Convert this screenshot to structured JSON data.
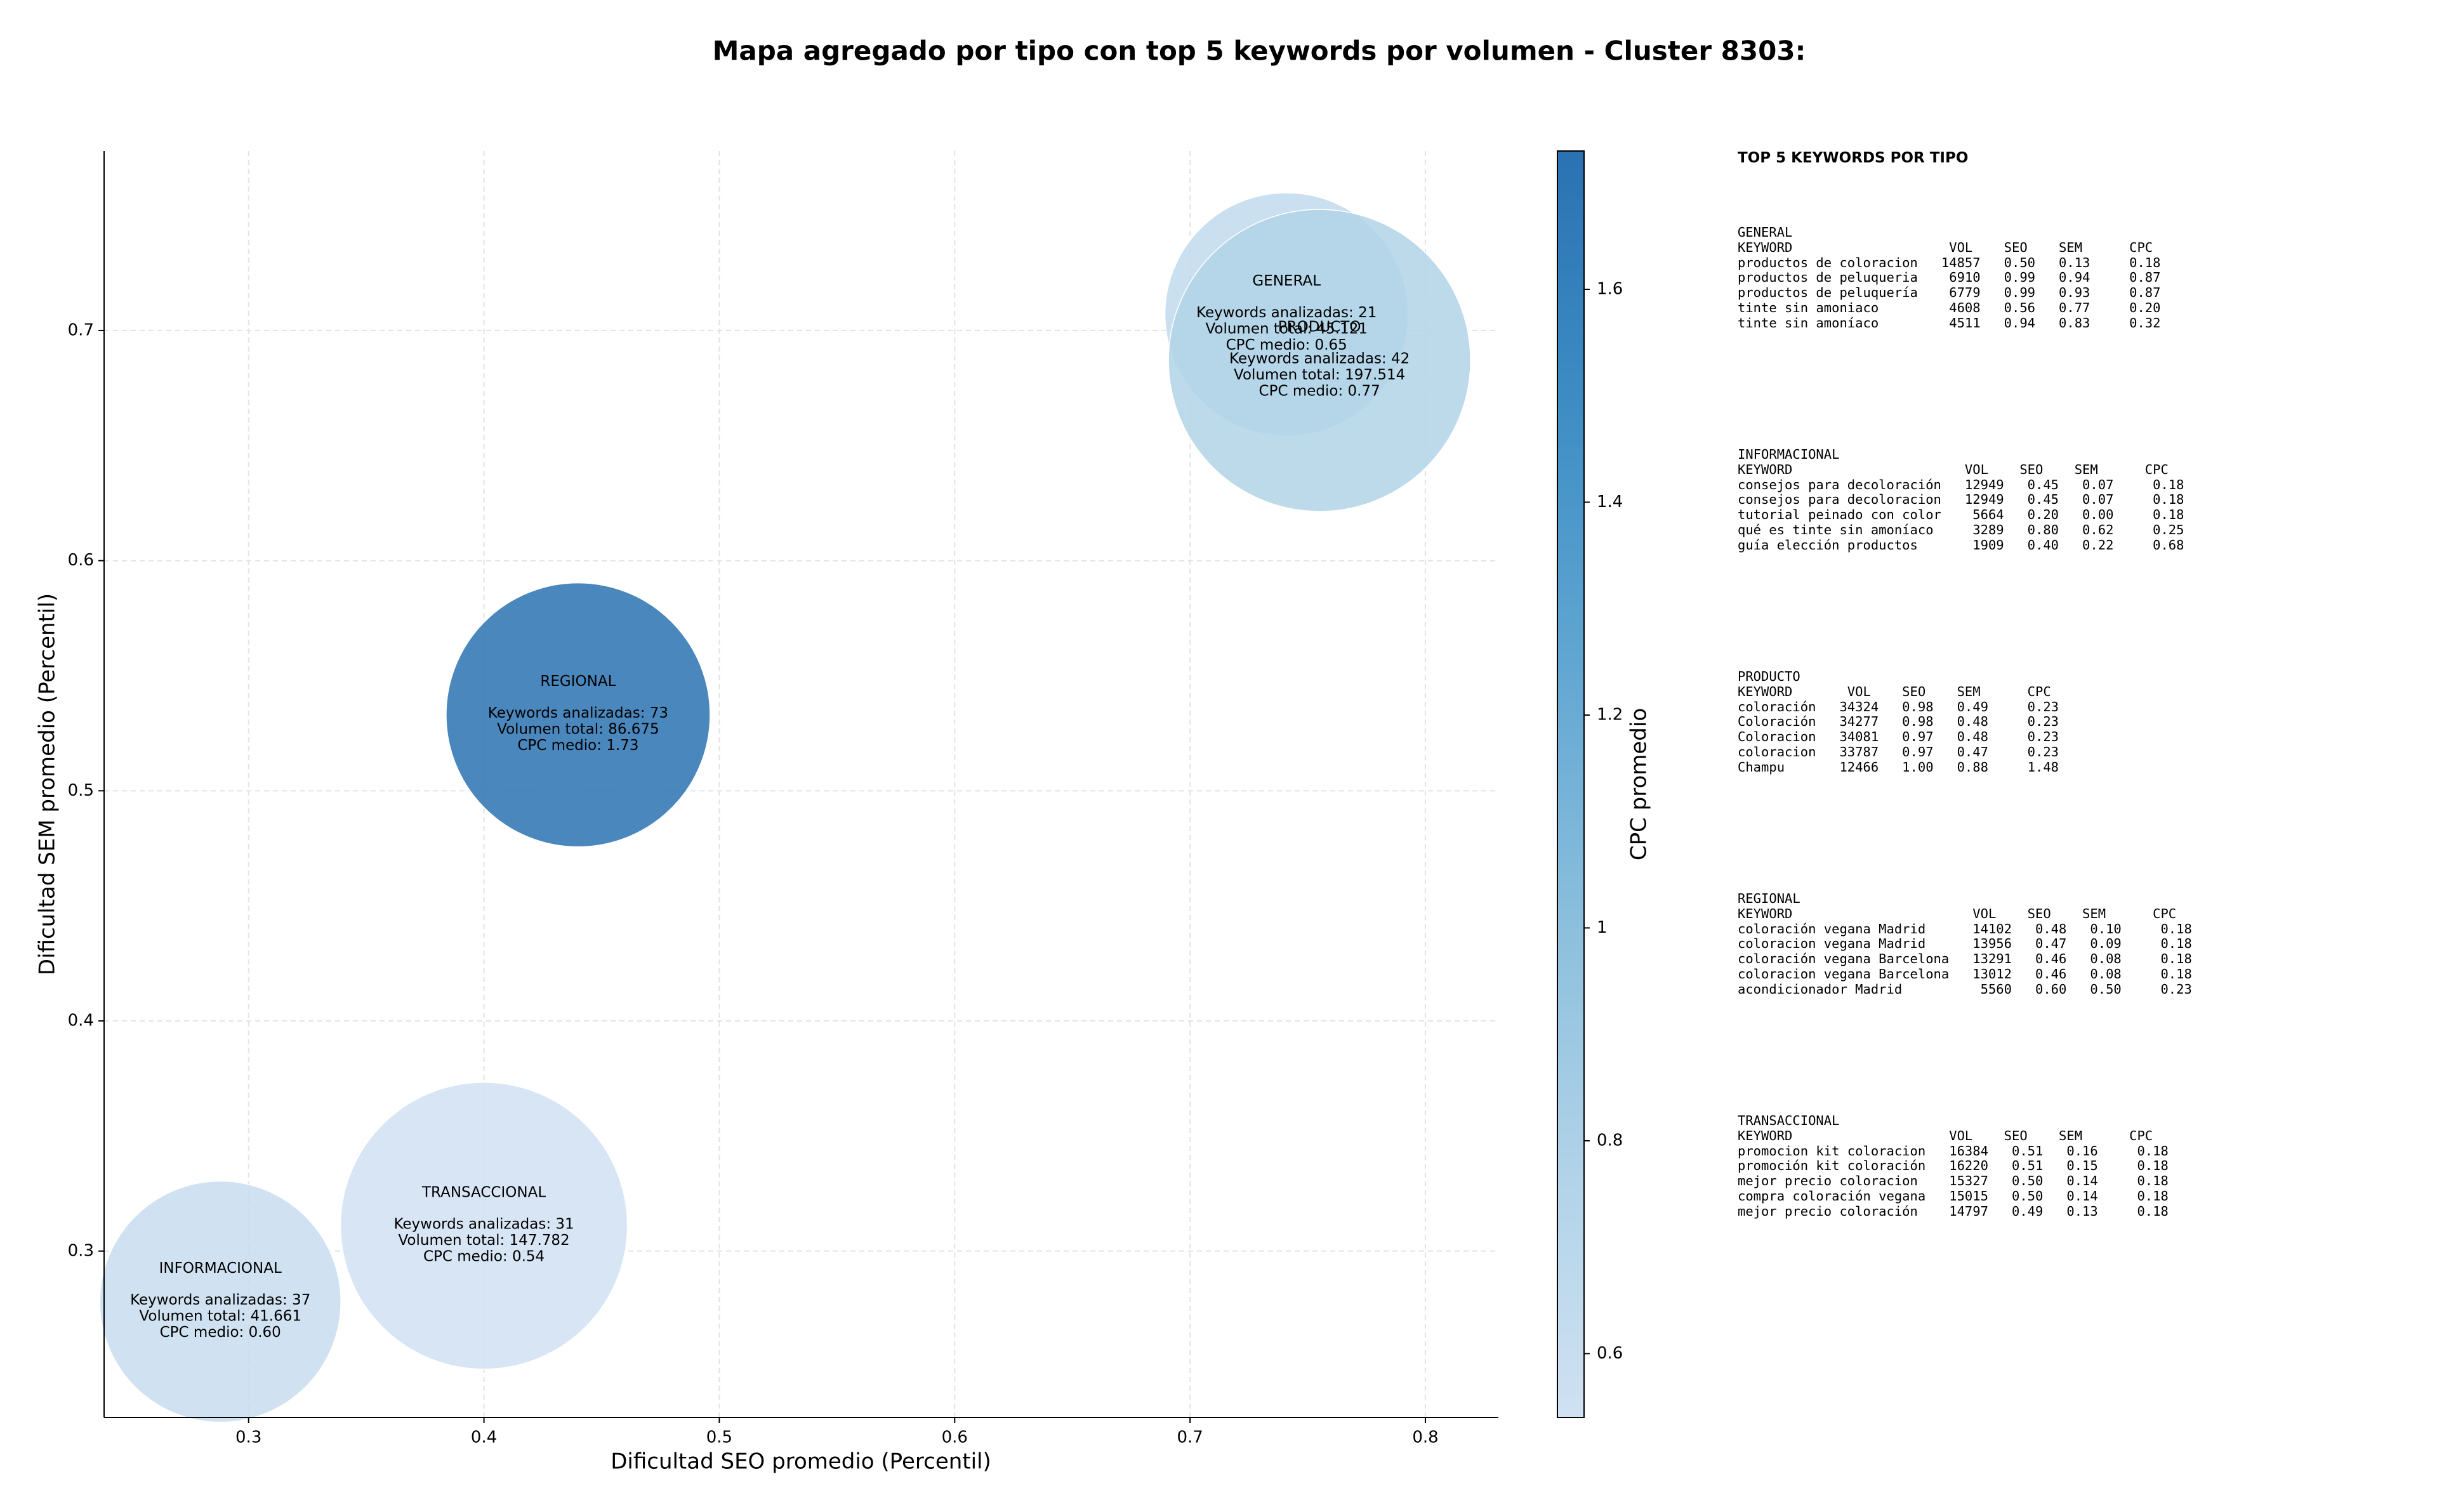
{
  "chart_data": {
    "type": "scatter",
    "title": "Mapa agregado por tipo con top 5 keywords por volumen - Cluster 8303:",
    "xlabel": "Dificultad SEO promedio (Percentil)",
    "ylabel": "Dificultad SEM promedio (Percentil)",
    "xlim": [
      0.2386,
      0.831
    ],
    "ylim": [
      0.2277,
      0.778
    ],
    "xticks": [
      0.3,
      0.4,
      0.5,
      0.6,
      0.7,
      0.8
    ],
    "yticks": [
      0.3,
      0.4,
      0.5,
      0.6,
      0.7
    ],
    "grid": true,
    "colorbar_label": "CPC promedio",
    "clim": [
      0.54,
      1.73
    ],
    "cticks": [
      0.6,
      0.8,
      1.0,
      1.2,
      1.4,
      1.6
    ],
    "colormap": [
      "#d0e1f2",
      "#b0d2e8",
      "#89bedc",
      "#60a6d2",
      "#3d8dc4",
      "#2a72b2"
    ],
    "bubbles": [
      {
        "label": "GENERAL",
        "x": 0.741,
        "y": 0.707,
        "volume": 45121,
        "cpc": 0.65,
        "lines": [
          "Keywords analizadas: 21",
          "Volumen total: 45.121",
          "CPC medio: 0.65"
        ]
      },
      {
        "label": "INFORMACIONAL",
        "x": 0.288,
        "y": 0.278,
        "volume": 41661,
        "cpc": 0.6,
        "lines": [
          "Keywords analizadas: 37",
          "Volumen total: 41.661",
          "CPC medio: 0.60"
        ]
      },
      {
        "label": "PRODUCTO",
        "x": 0.755,
        "y": 0.687,
        "volume": 197514,
        "cpc": 0.77,
        "lines": [
          "Keywords analizadas: 42",
          "Volumen total: 197.514",
          "CPC medio: 0.77"
        ]
      },
      {
        "label": "REGIONAL",
        "x": 0.44,
        "y": 0.533,
        "volume": 86675,
        "cpc": 1.73,
        "lines": [
          "Keywords analizadas: 73",
          "Volumen total: 86.675",
          "CPC medio: 1.73"
        ]
      },
      {
        "label": "TRANSACCIONAL",
        "x": 0.4,
        "y": 0.311,
        "volume": 147782,
        "cpc": 0.54,
        "lines": [
          "Keywords analizadas: 31",
          "Volumen total: 147.782",
          "CPC medio: 0.54"
        ]
      }
    ]
  },
  "keyword_panel": {
    "title": "TOP 5 KEYWORDS POR TIPO",
    "sections": [
      {
        "title": "GENERAL",
        "lines": [
          "KEYWORD                    VOL    SEO    SEM      CPC",
          "productos de coloracion   14857   0.50   0.13     0.18",
          "productos de peluqueria    6910   0.99   0.94     0.87",
          "productos de peluquería    6779   0.99   0.93     0.87",
          "tinte sin amoniaco         4608   0.56   0.77     0.20",
          "tinte sin amoníaco         4511   0.94   0.83     0.32"
        ]
      },
      {
        "title": "INFORMACIONAL",
        "lines": [
          "KEYWORD                      VOL    SEO    SEM      CPC",
          "consejos para decoloración   12949   0.45   0.07     0.18",
          "consejos para decoloracion   12949   0.45   0.07     0.18",
          "tutorial peinado con color    5664   0.20   0.00     0.18",
          "qué es tinte sin amoníaco     3289   0.80   0.62     0.25",
          "guía elección productos       1909   0.40   0.22     0.68"
        ]
      },
      {
        "title": "PRODUCTO",
        "lines": [
          "KEYWORD       VOL    SEO    SEM      CPC",
          "coloración   34324   0.98   0.49     0.23",
          "Coloración   34277   0.98   0.48     0.23",
          "Coloracion   34081   0.97   0.48     0.23",
          "coloracion   33787   0.97   0.47     0.23",
          "Champu       12466   1.00   0.88     1.48"
        ]
      },
      {
        "title": "REGIONAL",
        "lines": [
          "KEYWORD                       VOL    SEO    SEM      CPC",
          "coloración vegana Madrid      14102   0.48   0.10     0.18",
          "coloracion vegana Madrid      13956   0.47   0.09     0.18",
          "coloración vegana Barcelona   13291   0.46   0.08     0.18",
          "coloracion vegana Barcelona   13012   0.46   0.08     0.18",
          "acondicionador Madrid          5560   0.60   0.50     0.23"
        ]
      },
      {
        "title": "TRANSACCIONAL",
        "lines": [
          "KEYWORD                    VOL    SEO    SEM      CPC",
          "promocion kit coloracion   16384   0.51   0.16     0.18",
          "promoción kit coloración   16220   0.51   0.15     0.18",
          "mejor precio coloracion    15327   0.50   0.14     0.18",
          "compra coloración vegana   15015   0.50   0.14     0.18",
          "mejor precio coloración    14797   0.49   0.13     0.18"
        ]
      }
    ]
  }
}
